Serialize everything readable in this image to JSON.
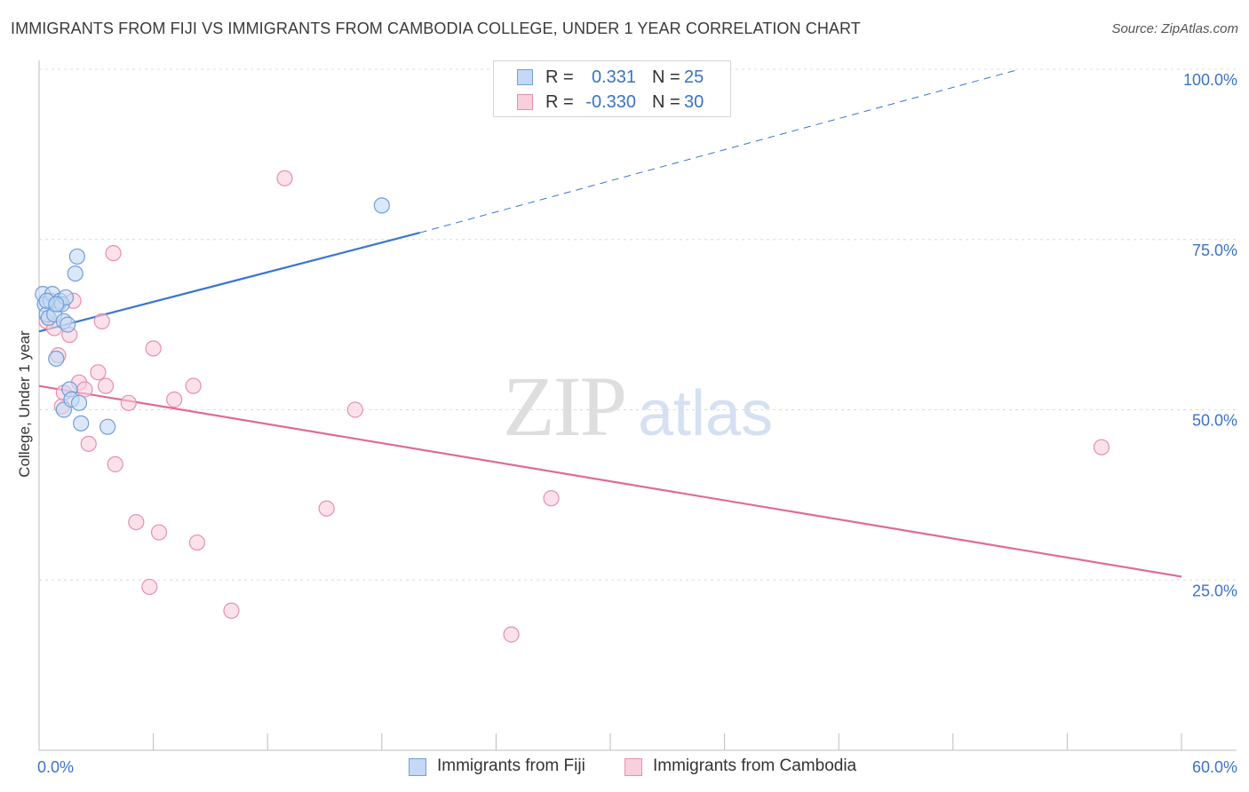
{
  "title": "IMMIGRANTS FROM FIJI VS IMMIGRANTS FROM CAMBODIA COLLEGE, UNDER 1 YEAR CORRELATION CHART",
  "source": "Source: ZipAtlas.com",
  "watermark": {
    "zip": "ZIP",
    "atlas": "atlas"
  },
  "stats": [
    {
      "r_label": "R =",
      "r_value": "0.331",
      "n_label": "N =",
      "n_value": "25",
      "fill": "#c5d8f5",
      "stroke": "#6f9fd8"
    },
    {
      "r_label": "R =",
      "r_value": "-0.330",
      "n_label": "N =",
      "n_value": "30",
      "fill": "#f9cfdc",
      "stroke": "#e88fae"
    }
  ],
  "legend": [
    {
      "label": "Immigrants from Fiji",
      "fill": "#c5d8f5",
      "stroke": "#6f9fd8"
    },
    {
      "label": "Immigrants from Cambodia",
      "fill": "#f9cfdc",
      "stroke": "#e88fae"
    }
  ],
  "chart_data": {
    "type": "scatter",
    "title": "IMMIGRANTS FROM FIJI VS IMMIGRANTS FROM CAMBODIA COLLEGE, UNDER 1 YEAR CORRELATION CHART",
    "xlabel": "",
    "ylabel": "College, Under 1 year",
    "xlim": [
      0,
      60
    ],
    "ylim": [
      0,
      102
    ],
    "x_tick_labels": [
      {
        "value": 0,
        "label": "0.0%"
      },
      {
        "value": 60,
        "label": "60.0%"
      }
    ],
    "x_minor_ticks": [
      6,
      12,
      18,
      24,
      30,
      36,
      42,
      48,
      54,
      60
    ],
    "y_ticks": [
      {
        "value": 25,
        "label": "25.0%"
      },
      {
        "value": 50,
        "label": "50.0%"
      },
      {
        "value": 75,
        "label": "75.0%"
      },
      {
        "value": 100,
        "label": "100.0%"
      }
    ],
    "grid": true,
    "series": [
      {
        "name": "Immigrants from Fiji",
        "color": "#6f9fd8",
        "fill": "#c5d8f5",
        "trend_color": "#3a76d0",
        "trend": {
          "x0": 0,
          "y0": 61.5,
          "x1": 20,
          "y1": 76,
          "dash_to_x": 51.5,
          "dash_to_y": 100
        },
        "points": [
          [
            0.2,
            67.0
          ],
          [
            0.3,
            65.5
          ],
          [
            0.4,
            64.0
          ],
          [
            0.5,
            63.5
          ],
          [
            0.6,
            66.0
          ],
          [
            0.7,
            67.0
          ],
          [
            0.8,
            64.0
          ],
          [
            0.9,
            57.5
          ],
          [
            1.0,
            65.5
          ],
          [
            1.1,
            66.0
          ],
          [
            1.2,
            65.5
          ],
          [
            1.3,
            63.0
          ],
          [
            1.3,
            50.0
          ],
          [
            1.4,
            66.5
          ],
          [
            1.5,
            62.5
          ],
          [
            1.6,
            53.0
          ],
          [
            1.7,
            51.5
          ],
          [
            1.9,
            70.0
          ],
          [
            2.0,
            72.5
          ],
          [
            2.1,
            51.0
          ],
          [
            2.2,
            48.0
          ],
          [
            3.6,
            47.5
          ],
          [
            18.0,
            80.0
          ],
          [
            0.4,
            66.0
          ],
          [
            0.9,
            65.5
          ]
        ]
      },
      {
        "name": "Immigrants from Cambodia",
        "color": "#e88fae",
        "fill": "#f9cfdc",
        "trend_color": "#e06a96",
        "trend": {
          "x0": 0,
          "y0": 53.5,
          "x1": 60,
          "y1": 25.5
        },
        "points": [
          [
            0.4,
            63.0
          ],
          [
            0.8,
            62.0
          ],
          [
            1.0,
            58.0
          ],
          [
            1.2,
            50.5
          ],
          [
            1.6,
            61.0
          ],
          [
            1.8,
            66.0
          ],
          [
            2.1,
            54.0
          ],
          [
            2.4,
            53.0
          ],
          [
            2.6,
            45.0
          ],
          [
            3.1,
            55.5
          ],
          [
            3.3,
            63.0
          ],
          [
            3.5,
            53.5
          ],
          [
            3.9,
            73.0
          ],
          [
            4.0,
            42.0
          ],
          [
            4.7,
            51.0
          ],
          [
            5.1,
            33.5
          ],
          [
            5.8,
            24.0
          ],
          [
            6.0,
            59.0
          ],
          [
            6.3,
            32.0
          ],
          [
            7.1,
            51.5
          ],
          [
            8.1,
            53.5
          ],
          [
            8.3,
            30.5
          ],
          [
            10.1,
            20.5
          ],
          [
            12.9,
            84.0
          ],
          [
            15.1,
            35.5
          ],
          [
            16.6,
            50.0
          ],
          [
            24.8,
            17.0
          ],
          [
            26.9,
            37.0
          ],
          [
            55.8,
            44.5
          ],
          [
            1.3,
            52.5
          ]
        ]
      }
    ]
  }
}
